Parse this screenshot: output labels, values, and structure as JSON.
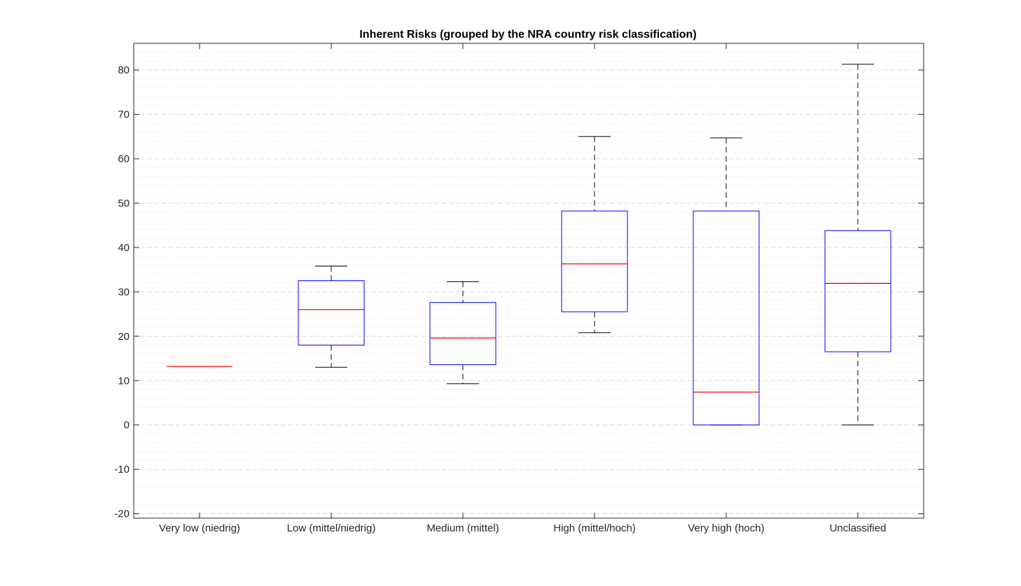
{
  "chart_data": {
    "type": "box",
    "title": "Inherent Risks (grouped by the NRA country risk classification)",
    "xlabel": "",
    "ylabel": "",
    "ylim": [
      -21,
      86
    ],
    "yticks": [
      -20,
      -10,
      0,
      10,
      20,
      30,
      40,
      50,
      60,
      70,
      80
    ],
    "grid": true,
    "minor_grid": true,
    "categories": [
      "Very low (niedrig)",
      "Low (mittel/niedrig)",
      "Medium (mittel)",
      "High (mittel/hoch)",
      "Very high (hoch)",
      "Unclassified"
    ],
    "boxes": [
      {
        "whisker_low": 13.2,
        "q1": 13.2,
        "median": 13.2,
        "q3": 13.2,
        "whisker_high": 13.2
      },
      {
        "whisker_low": 13.0,
        "q1": 18.0,
        "median": 26.0,
        "q3": 32.5,
        "whisker_high": 35.8
      },
      {
        "whisker_low": 9.3,
        "q1": 13.6,
        "median": 19.6,
        "q3": 27.6,
        "whisker_high": 32.3
      },
      {
        "whisker_low": 20.8,
        "q1": 25.5,
        "median": 36.3,
        "q3": 48.2,
        "whisker_high": 65.0
      },
      {
        "whisker_low": 0.0,
        "q1": 0.0,
        "median": 7.4,
        "q3": 48.2,
        "whisker_high": 64.7
      },
      {
        "whisker_low": 0.0,
        "q1": 16.5,
        "median": 31.9,
        "q3": 43.8,
        "whisker_high": 81.3
      }
    ],
    "colors": {
      "box": "#0000ff",
      "median": "#ff0000",
      "whisker": "#000000",
      "grid": "#d9d9d9",
      "axis": "#262626"
    }
  }
}
